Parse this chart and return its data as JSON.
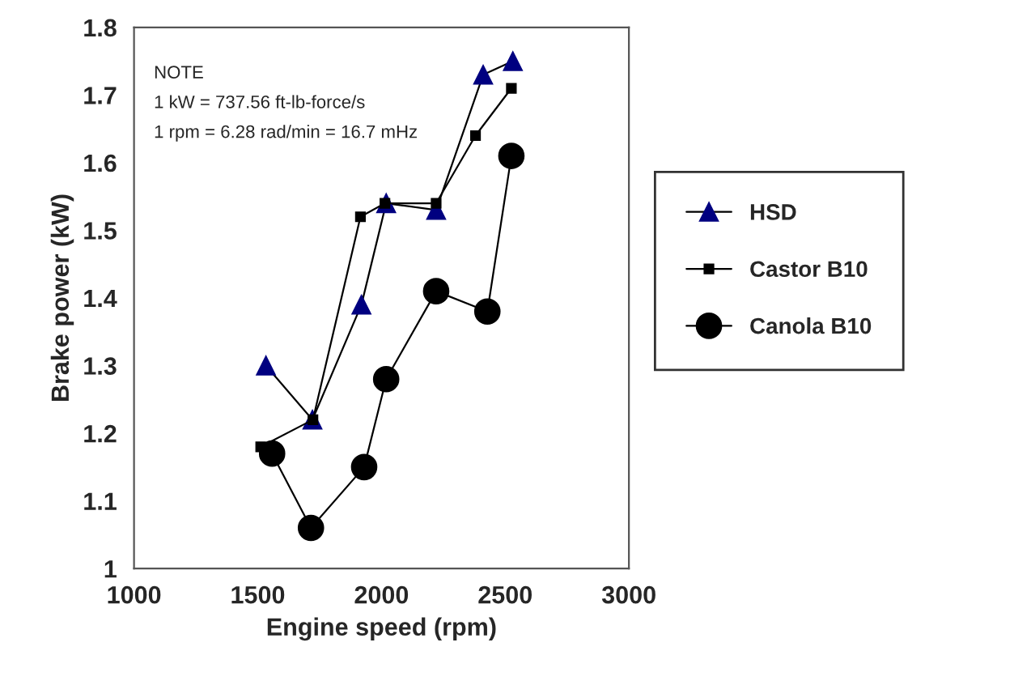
{
  "chart_data": {
    "type": "line",
    "xlabel": "Engine speed (rpm)",
    "ylabel": "Brake power (kW)",
    "xlim": [
      1000,
      3000
    ],
    "xticks": [
      1000,
      1500,
      2000,
      2500,
      3000
    ],
    "ylim": [
      1,
      1.8
    ],
    "yticks": [
      1,
      1.1,
      1.2,
      1.3,
      1.4,
      1.5,
      1.6,
      1.7,
      1.8
    ],
    "grid": false,
    "legend": "right",
    "line_style": "solid",
    "annotations": [
      "NOTE",
      "1 kW = 737.56 ft-lb-force/s",
      "1 rpm = 6.28 rad/min = 16.7 mHz"
    ],
    "series": [
      {
        "name": "HSD",
        "color": "#000080",
        "marker": "triangle",
        "x": [
          1533,
          1721,
          1919,
          2019,
          2221,
          2411,
          2531
        ],
        "values": [
          1.3,
          1.22,
          1.39,
          1.54,
          1.53,
          1.73,
          1.75
        ]
      },
      {
        "name": "Castor B10",
        "color": "#000000",
        "marker": "square",
        "x": [
          1512,
          1723,
          1915,
          2014,
          2221,
          2380,
          2525
        ],
        "values": [
          1.18,
          1.22,
          1.52,
          1.54,
          1.54,
          1.64,
          1.71
        ]
      },
      {
        "name": "Canola B10",
        "color": "#000000",
        "marker": "circle",
        "x": [
          1558,
          1715,
          1930,
          2019,
          2221,
          2428,
          2525
        ],
        "values": [
          1.17,
          1.06,
          1.15,
          1.28,
          1.41,
          1.38,
          1.61
        ]
      }
    ]
  }
}
